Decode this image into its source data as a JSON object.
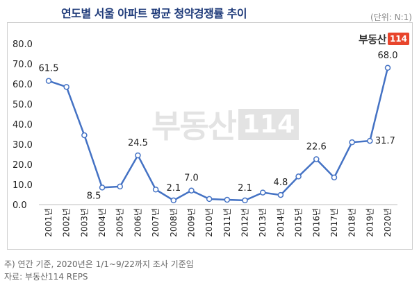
{
  "title": "연도별 서울 아파트 평균 청약경쟁률 추이",
  "unit_label": "(단위: N:1)",
  "logo": {
    "text": "부동산",
    "number": "114"
  },
  "watermark": {
    "text": "부동산",
    "number": "114"
  },
  "footnote": "주) 연간 기준, 2020년은 1/1~9/22까지 조사 기준임",
  "source": "자료: 부동산114 REPS",
  "chart_data": {
    "type": "line",
    "categories": [
      "2001년",
      "2002년",
      "2003년",
      "2004년",
      "2005년",
      "2006년",
      "2007년",
      "2008년",
      "2009년",
      "2010년",
      "2011년",
      "2012년",
      "2013년",
      "2014년",
      "2015년",
      "2016년",
      "2017년",
      "2018년",
      "2019년",
      "2020년"
    ],
    "values": [
      61.5,
      58.5,
      34.5,
      8.5,
      9.0,
      24.5,
      7.5,
      2.1,
      7.0,
      2.8,
      2.4,
      2.1,
      6.0,
      4.8,
      14.0,
      22.6,
      13.5,
      31.0,
      31.7,
      68.0
    ],
    "labels": {
      "0": "61.5",
      "3": "8.5",
      "5": "24.5",
      "7": "2.1",
      "8": "7.0",
      "11": "2.1",
      "13": "4.8",
      "15": "22.6",
      "18": "31.7",
      "19": "68.0"
    },
    "yticks": [
      "0.0",
      "10.0",
      "20.0",
      "30.0",
      "40.0",
      "50.0",
      "60.0",
      "70.0",
      "80.0"
    ],
    "ylim": [
      0,
      80
    ],
    "line_color": "#4472c4",
    "grid": false,
    "legend": "none"
  }
}
